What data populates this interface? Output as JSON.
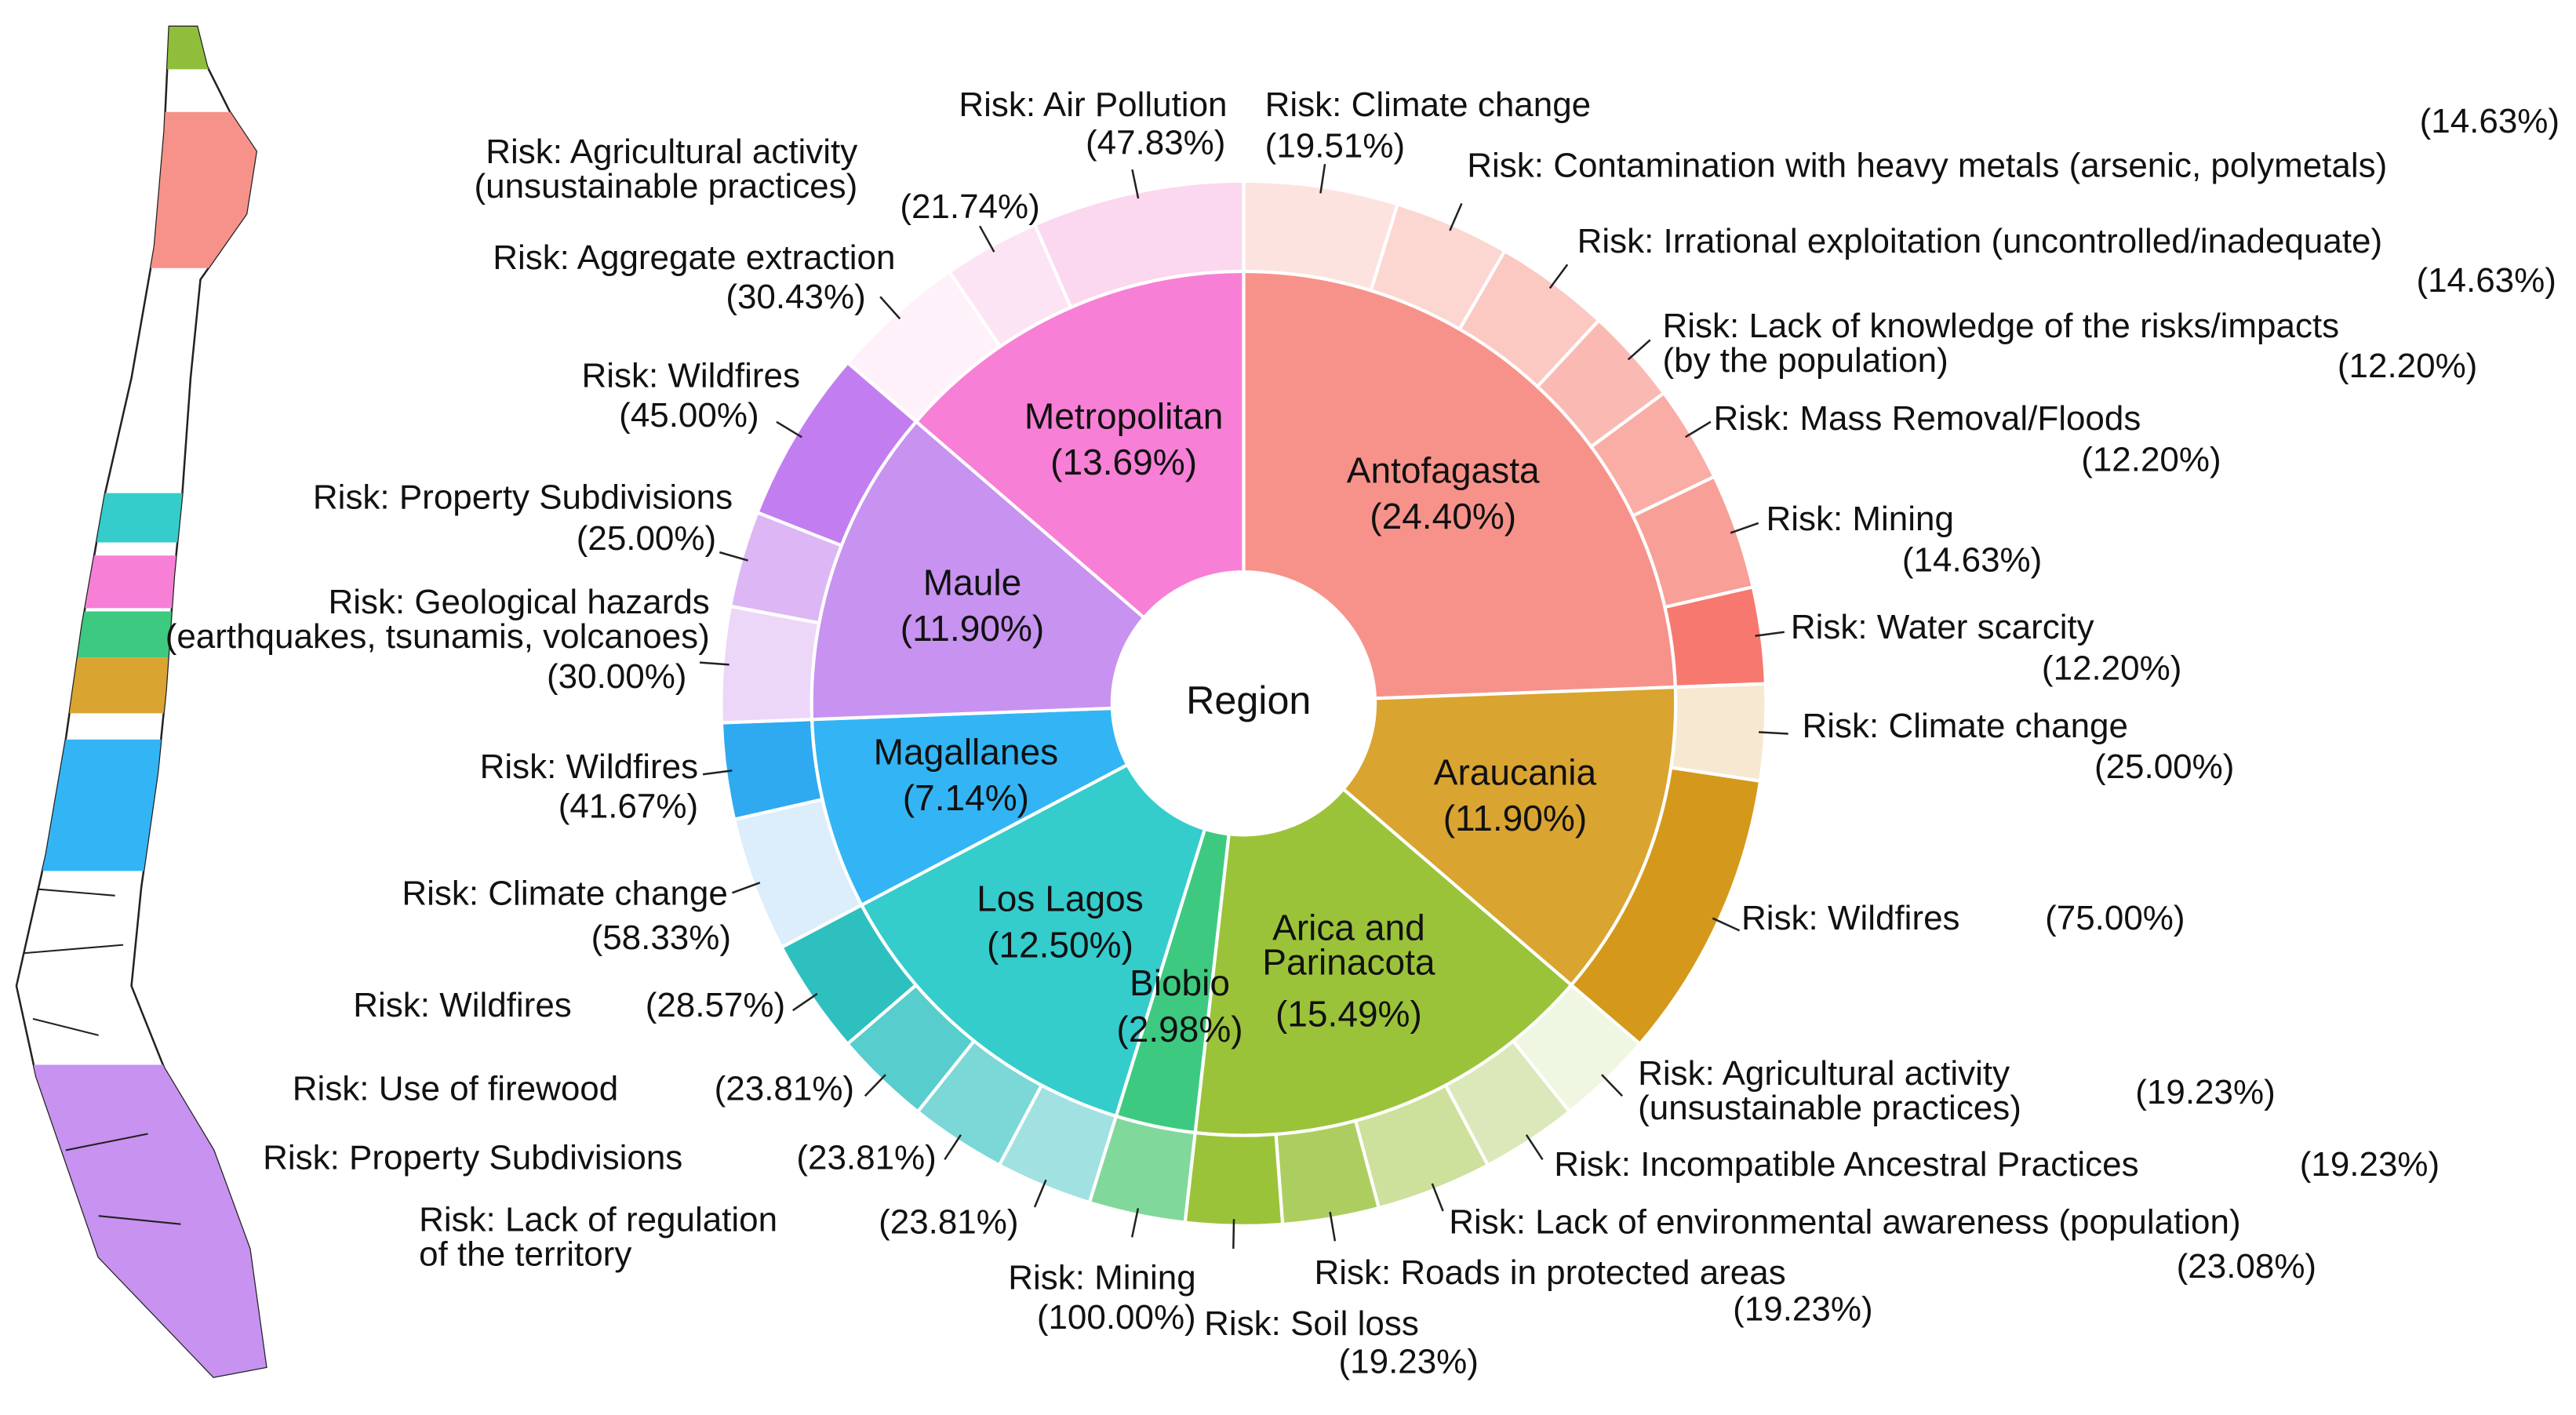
{
  "chart_data": {
    "type": "sunburst",
    "center_label": "Region",
    "regions": [
      {
        "name": "Antofagasta",
        "value": 24.4,
        "value_label": "(24.40%)",
        "color": "#f7928a",
        "children": [
          {
            "name": "Risk: Climate change",
            "value": 19.51,
            "value_label": "(19.51%)",
            "color": "#fde3df"
          },
          {
            "name": "Risk: Contamination with heavy metals (arsenic, polymetals)",
            "value": 14.63,
            "value_label": "(14.63%)",
            "color": "#fcd6d1"
          },
          {
            "name": "Risk: Irrational exploitation (uncontrolled/inadequate)",
            "value": 14.63,
            "value_label": "(14.63%)",
            "color": "#fbc8c2"
          },
          {
            "name": "Risk: Lack of knowledge of the risks/impacts\n(by the population)",
            "value": 12.2,
            "value_label": "(12.20%)",
            "color": "#fabab3"
          },
          {
            "name": "Risk: Mass Removal/Floods",
            "value": 12.2,
            "value_label": "(12.20%)",
            "color": "#f9ada5"
          },
          {
            "name": "Risk: Mining",
            "value": 14.63,
            "value_label": "(14.63%)",
            "color": "#f89f97"
          },
          {
            "name": "Risk: Water scarcity",
            "value": 12.2,
            "value_label": "(12.20%)",
            "color": "#f7786f"
          }
        ]
      },
      {
        "name": "Araucania",
        "value": 11.9,
        "value_label": "(11.90%)",
        "color": "#d9a430",
        "children": [
          {
            "name": "Risk: Climate change",
            "value": 25.0,
            "value_label": "(25.00%)",
            "color": "#f7e8d2"
          },
          {
            "name": "Risk: Wildfires",
            "value": 75.0,
            "value_label": "(75.00%)",
            "color": "#d4991a"
          }
        ]
      },
      {
        "name": "Arica and\nParinacota",
        "value": 15.49,
        "value_label": "(15.49%)",
        "color": "#9bc33a",
        "children": [
          {
            "name": "Risk: Agricultural activity\n(unsustainable practices)",
            "value": 19.23,
            "value_label": "(19.23%)",
            "color": "#eff6e2"
          },
          {
            "name": "Risk: Incompatible Ancestral Practices",
            "value": 19.23,
            "value_label": "(19.23%)",
            "color": "#dbe9ba"
          },
          {
            "name": "Risk: Lack of environmental awareness (population)",
            "value": 23.08,
            "value_label": "(23.08%)",
            "color": "#cde09c"
          },
          {
            "name": "Risk: Roads in protected areas",
            "value": 19.23,
            "value_label": "(19.23%)",
            "color": "#acce60"
          },
          {
            "name": "Risk: Soil loss",
            "value": 19.23,
            "value_label": "(19.23%)",
            "color": "#9bc33a"
          }
        ]
      },
      {
        "name": "Biobio",
        "value": 2.98,
        "value_label": "(2.98%)",
        "color": "#3dca80",
        "children": [
          {
            "name": "Risk: Mining",
            "value": 100.0,
            "value_label": "(100.00%)",
            "color": "#80d99b"
          }
        ]
      },
      {
        "name": "Los Lagos",
        "value": 12.5,
        "value_label": "(12.50%)",
        "color": "#35cccc",
        "children": [
          {
            "name": "Risk: Lack of regulation\nof the territory",
            "value": 23.81,
            "value_label": "(23.81%)",
            "color": "#a2e1e1"
          },
          {
            "name": "Risk: Property Subdivisions",
            "value": 23.81,
            "value_label": "(23.81%)",
            "color": "#7cd7d7"
          },
          {
            "name": "Risk: Use of firewood",
            "value": 23.81,
            "value_label": "(23.81%)",
            "color": "#57cdcd"
          },
          {
            "name": "Risk: Wildfires",
            "value": 28.57,
            "value_label": "(28.57%)",
            "color": "#2ebfbf"
          }
        ]
      },
      {
        "name": "Magallanes",
        "value": 7.14,
        "value_label": "(7.14%)",
        "color": "#33b5f5",
        "children": [
          {
            "name": "Risk: Climate change",
            "value": 58.33,
            "value_label": "(58.33%)",
            "color": "#dcedfc"
          },
          {
            "name": "Risk: Wildfires",
            "value": 41.67,
            "value_label": "(41.67%)",
            "color": "#2fa9f0"
          }
        ]
      },
      {
        "name": "Maule",
        "value": 11.9,
        "value_label": "(11.90%)",
        "color": "#c792f0",
        "children": [
          {
            "name": "Risk: Geological hazards\n(earthquakes, tsunamis, volcanoes)",
            "value": 30.0,
            "value_label": "(30.00%)",
            "color": "#edd7f8"
          },
          {
            "name": "Risk: Property Subdivisions",
            "value": 25.0,
            "value_label": "(25.00%)",
            "color": "#ddb7f5"
          },
          {
            "name": "Risk: Wildfires",
            "value": 45.0,
            "value_label": "(45.00%)",
            "color": "#c27ef0"
          }
        ]
      },
      {
        "name": "Metropolitan",
        "value": 13.69,
        "value_label": "(13.69%)",
        "color": "#f77fd6",
        "children": [
          {
            "name": "Risk: Aggregate extraction",
            "value": 30.43,
            "value_label": "(30.43%)",
            "color": "#fff1fa"
          },
          {
            "name": "Risk: Agricultural activity\n(unsustainable practices)",
            "value": 21.74,
            "value_label": "(21.74%)",
            "color": "#fde4f4"
          },
          {
            "name": "Risk: Air Pollution",
            "value": 47.83,
            "value_label": "(47.83%)",
            "color": "#fbd8ef"
          }
        ]
      }
    ]
  }
}
